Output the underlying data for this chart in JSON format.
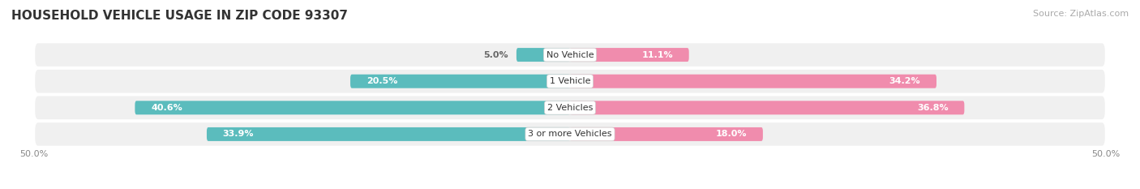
{
  "title": "HOUSEHOLD VEHICLE USAGE IN ZIP CODE 93307",
  "source": "Source: ZipAtlas.com",
  "categories": [
    "No Vehicle",
    "1 Vehicle",
    "2 Vehicles",
    "3 or more Vehicles"
  ],
  "owner_values": [
    5.0,
    20.5,
    40.6,
    33.9
  ],
  "renter_values": [
    11.1,
    34.2,
    36.8,
    18.0
  ],
  "owner_color": "#5bbcbd",
  "renter_color": "#f08cad",
  "label_color_inner": "#ffffff",
  "label_color_outer": "#666666",
  "row_bg_color_light": "#f5f5f5",
  "row_bg_color_dark": "#e8e8e8",
  "axis_limit": 50.0,
  "bar_height": 0.52,
  "category_label_fontsize": 8,
  "value_label_fontsize": 8,
  "title_fontsize": 11,
  "source_fontsize": 8,
  "tick_fontsize": 8,
  "inner_threshold": 10.0
}
